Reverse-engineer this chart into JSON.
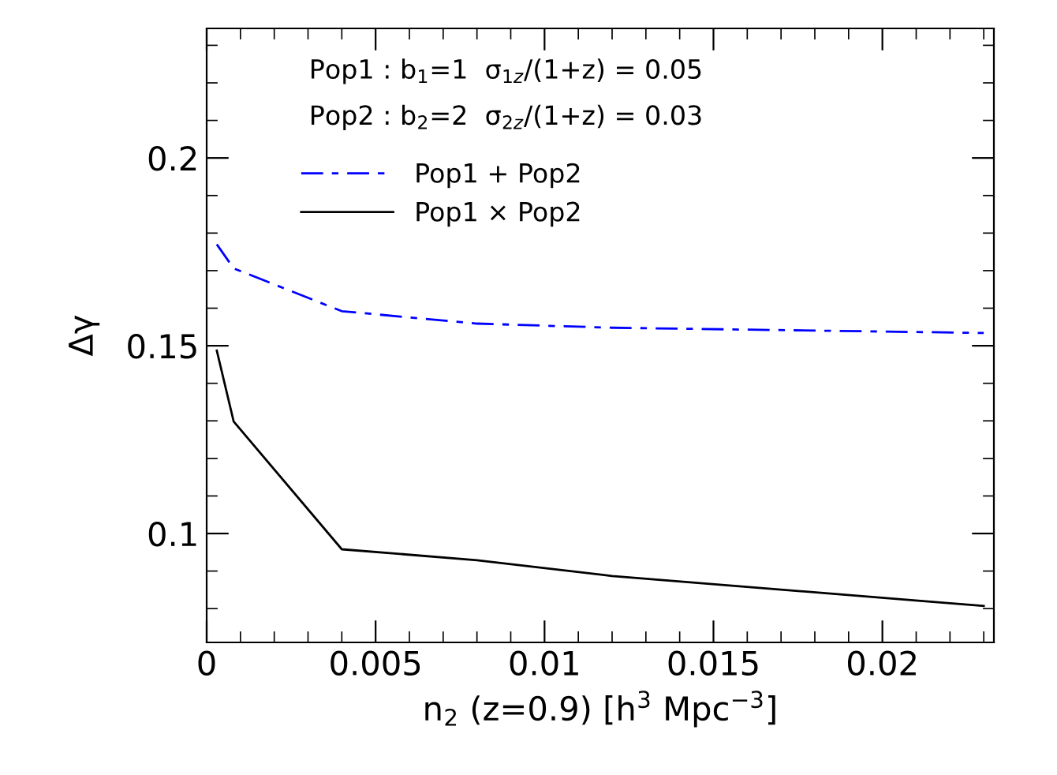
{
  "chart_data": {
    "type": "line",
    "xlabel": "n$_{2}$ (z=0.9) [h$^{3}$ Mpc$^{−3}$]",
    "ylabel": "Δγ",
    "annotations": [
      "Pop1 : b$_{1}$=1  σ$_{1z}$/(1+z) = 0.05",
      "Pop2 : b$_{2}$=2  σ$_{2z}$/(1+z) = 0.03"
    ],
    "series": [
      {
        "name": "Pop1 + Pop2",
        "color": "#0000ff",
        "line_style": "dashed",
        "x": [
          0.0003,
          0.0008,
          0.004,
          0.008,
          0.012,
          0.023
        ],
        "values": [
          0.177,
          0.1706,
          0.1592,
          0.1559,
          0.1548,
          0.1534
        ]
      },
      {
        "name": "Pop1 × Pop2",
        "color": "#000000",
        "line_style": "solid",
        "x": [
          0.0003,
          0.0008,
          0.004,
          0.008,
          0.012,
          0.023
        ],
        "values": [
          0.1487,
          0.1298,
          0.0958,
          0.0929,
          0.0887,
          0.0807
        ]
      }
    ],
    "xlim": [
      0,
      0.0233
    ],
    "ylim": [
      0.071,
      0.2345
    ],
    "xticks": [
      0,
      0.005,
      0.01,
      0.015,
      0.02
    ],
    "yticks": [
      0.1,
      0.15,
      0.2
    ],
    "grid": false,
    "legend": "top left",
    "marker": "none"
  }
}
